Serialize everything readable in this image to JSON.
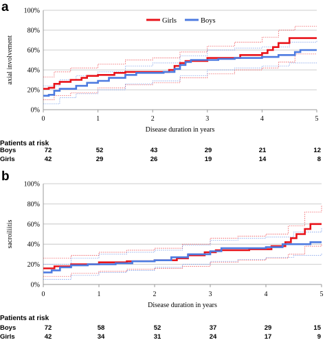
{
  "colors": {
    "girls": "#e8131a",
    "boys": "#4d7be0",
    "grid": "#bdbdbd",
    "axis": "#999999"
  },
  "risk_title": "Patients at risk",
  "chart_data": [
    {
      "type": "line",
      "panel_label": "a",
      "title": "",
      "xlabel": "Disease duration in years",
      "ylabel": "axial involvement",
      "xlim": [
        0,
        5
      ],
      "ylim": [
        0,
        100
      ],
      "xticks": [
        "0",
        "1",
        "2",
        "3",
        "4",
        "5"
      ],
      "yticks": [
        "0%",
        "20%",
        "40%",
        "60%",
        "80%",
        "100%"
      ],
      "grid": true,
      "legend": "top-right",
      "series": [
        {
          "name": "Girls",
          "color_key": "girls",
          "style": "step",
          "points": [
            [
              0,
              21
            ],
            [
              0.1,
              22
            ],
            [
              0.2,
              26
            ],
            [
              0.3,
              28
            ],
            [
              0.5,
              30
            ],
            [
              0.7,
              32
            ],
            [
              0.8,
              34
            ],
            [
              1.0,
              35
            ],
            [
              1.3,
              37
            ],
            [
              1.5,
              38
            ],
            [
              2.3,
              40
            ],
            [
              2.4,
              44
            ],
            [
              2.5,
              47
            ],
            [
              2.6,
              49
            ],
            [
              3.0,
              52
            ],
            [
              3.6,
              55
            ],
            [
              4.0,
              57
            ],
            [
              4.1,
              60
            ],
            [
              4.2,
              63
            ],
            [
              4.3,
              67
            ],
            [
              4.5,
              72
            ],
            [
              5,
              72
            ]
          ],
          "ci_lower": [
            [
              0,
              10
            ],
            [
              0.2,
              14
            ],
            [
              0.5,
              17
            ],
            [
              1.0,
              22
            ],
            [
              1.5,
              25
            ],
            [
              2.0,
              27
            ],
            [
              2.5,
              32
            ],
            [
              3.0,
              36
            ],
            [
              3.5,
              40
            ],
            [
              4.0,
              42
            ],
            [
              4.3,
              48
            ],
            [
              4.6,
              56
            ],
            [
              5,
              56
            ]
          ],
          "ci_upper": [
            [
              0,
              33
            ],
            [
              0.2,
              38
            ],
            [
              0.5,
              42
            ],
            [
              1.0,
              46
            ],
            [
              1.5,
              50
            ],
            [
              2.0,
              52
            ],
            [
              2.5,
              58
            ],
            [
              3.0,
              64
            ],
            [
              3.5,
              68
            ],
            [
              4.0,
              73
            ],
            [
              4.3,
              80
            ],
            [
              4.6,
              84
            ],
            [
              5,
              84
            ]
          ]
        },
        {
          "name": "Boys",
          "color_key": "boys",
          "style": "step",
          "points": [
            [
              0,
              14
            ],
            [
              0.1,
              15
            ],
            [
              0.2,
              19
            ],
            [
              0.3,
              21
            ],
            [
              0.6,
              24
            ],
            [
              0.8,
              27
            ],
            [
              1.0,
              29
            ],
            [
              1.2,
              32
            ],
            [
              1.5,
              35
            ],
            [
              1.7,
              37
            ],
            [
              2.2,
              38
            ],
            [
              2.4,
              41
            ],
            [
              2.5,
              45
            ],
            [
              2.6,
              48
            ],
            [
              2.7,
              50
            ],
            [
              3.2,
              51
            ],
            [
              3.5,
              52
            ],
            [
              4.0,
              53
            ],
            [
              4.3,
              55
            ],
            [
              4.6,
              58
            ],
            [
              4.7,
              60
            ],
            [
              5,
              60
            ]
          ],
          "ci_lower": [
            [
              0,
              6
            ],
            [
              0.3,
              12
            ],
            [
              0.6,
              16
            ],
            [
              1.0,
              20
            ],
            [
              1.5,
              26
            ],
            [
              2.0,
              29
            ],
            [
              2.5,
              34
            ],
            [
              3.0,
              40
            ],
            [
              3.5,
              42
            ],
            [
              4.0,
              44
            ],
            [
              4.5,
              47
            ],
            [
              5,
              47
            ]
          ],
          "ci_upper": [
            [
              0,
              24
            ],
            [
              0.3,
              30
            ],
            [
              0.6,
              34
            ],
            [
              1.0,
              38
            ],
            [
              1.5,
              44
            ],
            [
              2.0,
              47
            ],
            [
              2.5,
              54
            ],
            [
              3.0,
              60
            ],
            [
              3.5,
              62
            ],
            [
              4.0,
              63
            ],
            [
              4.5,
              68
            ],
            [
              5,
              70
            ]
          ]
        }
      ],
      "risk_table": {
        "times": [
          0,
          1,
          2,
          3,
          4,
          5
        ],
        "rows": [
          {
            "label": "Boys",
            "values": [
              "72",
              "52",
              "43",
              "29",
              "21",
              "12"
            ]
          },
          {
            "label": "Girls",
            "values": [
              "42",
              "29",
              "26",
              "19",
              "14",
              "8"
            ]
          }
        ]
      }
    },
    {
      "type": "line",
      "panel_label": "b",
      "title": "",
      "xlabel": "Disease duration in years",
      "ylabel": "sacroiliitis",
      "xlim": [
        0,
        5
      ],
      "ylim": [
        0,
        100
      ],
      "xticks": [
        "0",
        "1",
        "2",
        "3",
        "4",
        "5"
      ],
      "yticks": [
        "0%",
        "20%",
        "40%",
        "60%",
        "80%",
        "100%"
      ],
      "grid": true,
      "legend": "",
      "series": [
        {
          "name": "Girls",
          "color_key": "girls",
          "style": "step",
          "points": [
            [
              0,
              16
            ],
            [
              0.2,
              18
            ],
            [
              0.5,
              20
            ],
            [
              1.0,
              22
            ],
            [
              1.5,
              23
            ],
            [
              2.0,
              24
            ],
            [
              2.4,
              26
            ],
            [
              2.6,
              29
            ],
            [
              2.9,
              32
            ],
            [
              3.1,
              34
            ],
            [
              3.7,
              35
            ],
            [
              4.1,
              38
            ],
            [
              4.35,
              42
            ],
            [
              4.45,
              46
            ],
            [
              4.55,
              50
            ],
            [
              4.7,
              55
            ],
            [
              4.8,
              60
            ],
            [
              5,
              60
            ]
          ],
          "ci_lower": [
            [
              0,
              8
            ],
            [
              0.5,
              11
            ],
            [
              1.0,
              13
            ],
            [
              1.5,
              15
            ],
            [
              2.0,
              16
            ],
            [
              2.5,
              18
            ],
            [
              3.0,
              22
            ],
            [
              3.5,
              24
            ],
            [
              4.0,
              26
            ],
            [
              4.4,
              30
            ],
            [
              4.7,
              38
            ],
            [
              5,
              40
            ]
          ],
          "ci_upper": [
            [
              0,
              26
            ],
            [
              0.5,
              29
            ],
            [
              1.0,
              32
            ],
            [
              1.5,
              34
            ],
            [
              2.0,
              36
            ],
            [
              2.5,
              40
            ],
            [
              3.0,
              46
            ],
            [
              3.5,
              48
            ],
            [
              4.0,
              50
            ],
            [
              4.4,
              58
            ],
            [
              4.7,
              72
            ],
            [
              5,
              78
            ]
          ]
        },
        {
          "name": "Boys",
          "color_key": "boys",
          "style": "step",
          "points": [
            [
              0,
              12
            ],
            [
              0.15,
              14
            ],
            [
              0.3,
              17
            ],
            [
              0.5,
              19
            ],
            [
              0.8,
              20
            ],
            [
              1.3,
              21
            ],
            [
              1.6,
              23
            ],
            [
              2.0,
              24
            ],
            [
              2.3,
              27
            ],
            [
              2.6,
              30
            ],
            [
              3.0,
              33
            ],
            [
              3.2,
              36
            ],
            [
              4.0,
              37
            ],
            [
              4.3,
              40
            ],
            [
              4.8,
              42
            ],
            [
              5,
              42
            ]
          ],
          "ci_lower": [
            [
              0,
              5
            ],
            [
              0.5,
              9
            ],
            [
              1.0,
              12
            ],
            [
              1.5,
              14
            ],
            [
              2.0,
              17
            ],
            [
              2.5,
              20
            ],
            [
              3.0,
              23
            ],
            [
              3.5,
              25
            ],
            [
              4.0,
              27
            ],
            [
              4.5,
              29
            ],
            [
              5,
              31
            ]
          ],
          "ci_upper": [
            [
              0,
              20
            ],
            [
              0.5,
              26
            ],
            [
              1.0,
              30
            ],
            [
              1.5,
              32
            ],
            [
              2.0,
              34
            ],
            [
              2.5,
              39
            ],
            [
              3.0,
              44
            ],
            [
              3.5,
              46
            ],
            [
              4.0,
              47
            ],
            [
              4.5,
              52
            ],
            [
              5,
              56
            ]
          ]
        }
      ],
      "risk_table": {
        "times": [
          0,
          1,
          2,
          3,
          4,
          5
        ],
        "rows": [
          {
            "label": "Boys",
            "values": [
              "72",
              "58",
              "52",
              "37",
              "29",
              "15"
            ]
          },
          {
            "label": "Girls",
            "values": [
              "42",
              "34",
              "31",
              "24",
              "17",
              "9"
            ]
          }
        ]
      }
    }
  ]
}
